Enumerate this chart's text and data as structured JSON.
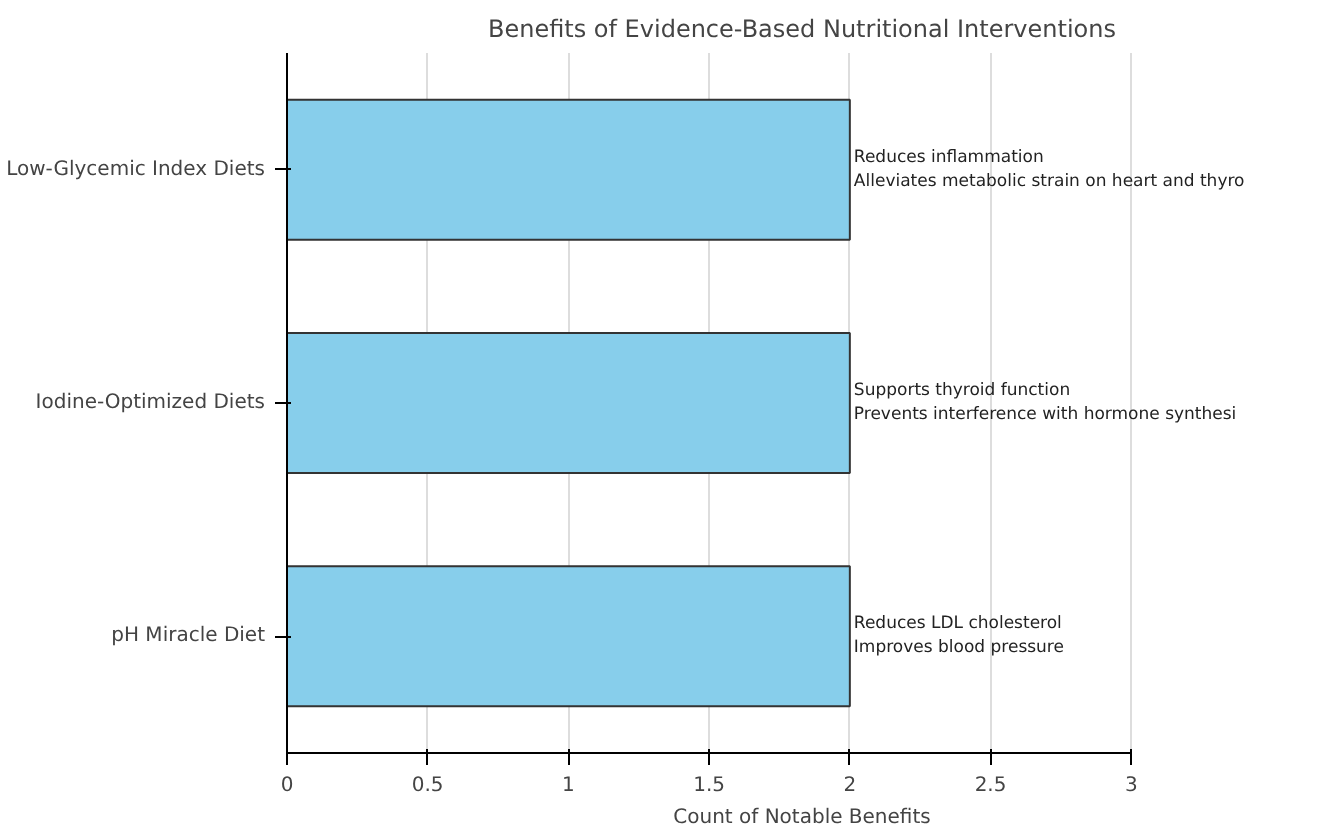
{
  "chart_data": {
    "type": "bar",
    "orientation": "horizontal",
    "title": "Benefits of Evidence-Based Nutritional Interventions",
    "xlabel": "Count of Notable Benefits",
    "categories": [
      "Low-Glycemic Index Diets",
      "Iodine-Optimized Diets",
      "pH Miracle Diet"
    ],
    "values": [
      2,
      2,
      2
    ],
    "color": "#87ceeb",
    "xlim": [
      0,
      3
    ],
    "xticks": [
      0,
      0.5,
      1,
      1.5,
      2,
      2.5,
      3
    ],
    "grid": "x",
    "annotations": [
      "Reduces inflammation\nAlleviates metabolic strain on heart and thyro",
      "Supports thyroid function\nPrevents interference with hormone synthesi",
      "Reduces LDL cholesterol\nImproves blood pressure"
    ]
  }
}
